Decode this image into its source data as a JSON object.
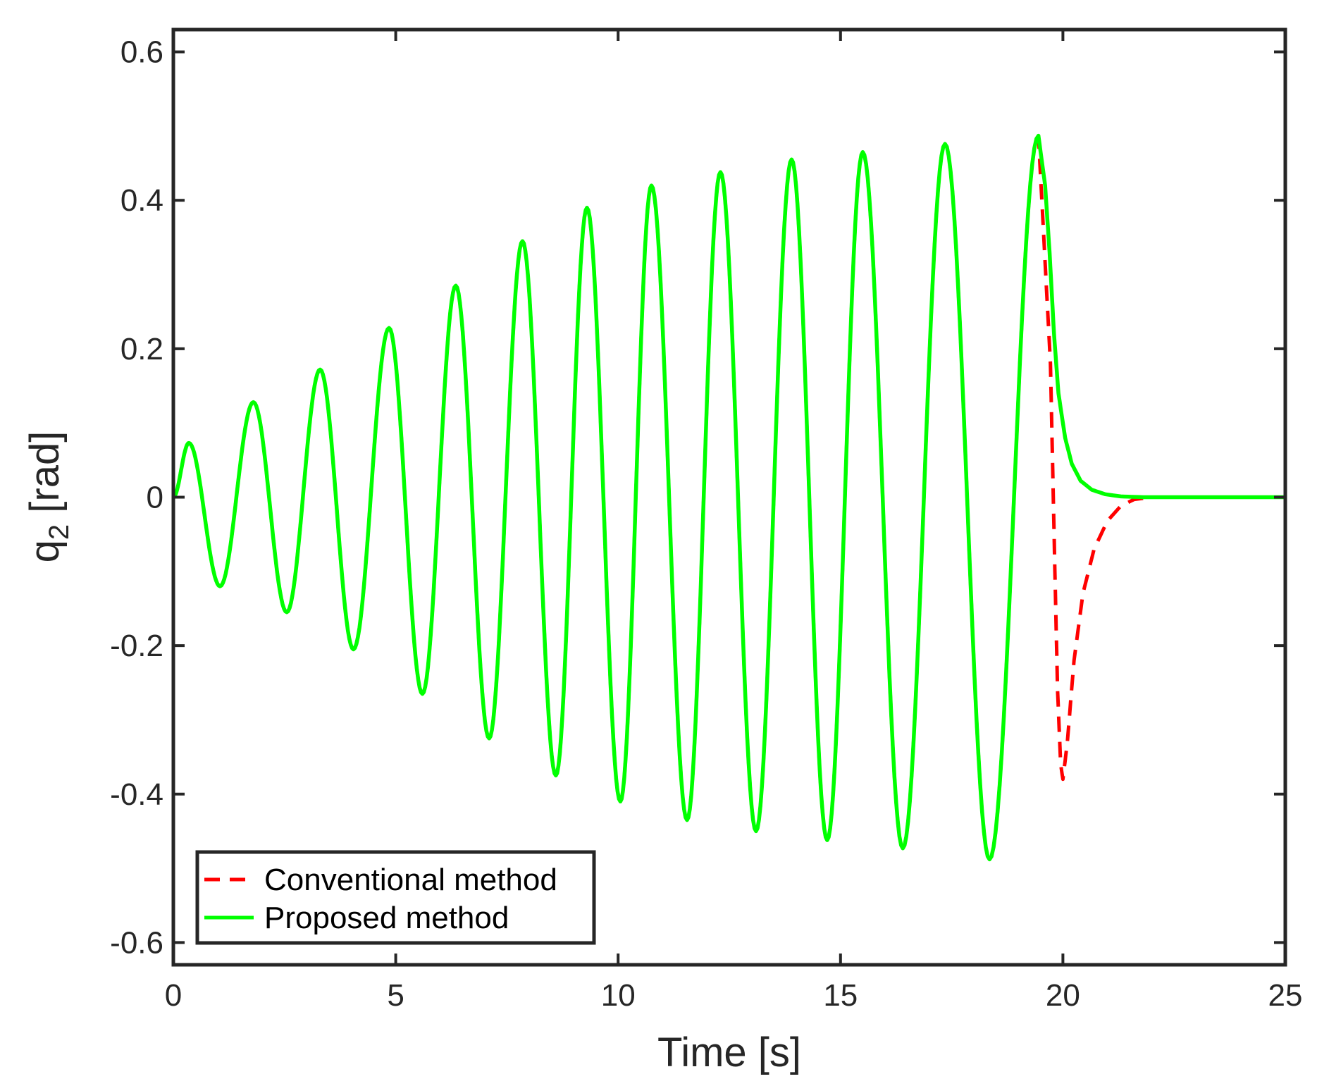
{
  "chart_data": {
    "type": "line",
    "title": "",
    "xlabel": "Time [s]",
    "ylabel_main": "q",
    "ylabel_sub": "2",
    "ylabel_unit": " [rad]",
    "xlim": [
      0,
      25
    ],
    "ylim": [
      -0.63,
      0.63
    ],
    "xticks": [
      0,
      5,
      10,
      15,
      20,
      25
    ],
    "xtick_labels": [
      "0",
      "5",
      "10",
      "15",
      "20",
      "25"
    ],
    "yticks": [
      -0.6,
      -0.4,
      -0.2,
      0,
      0.2,
      0.4,
      0.6
    ],
    "ytick_labels": [
      "-0.6",
      "-0.4",
      "-0.2",
      "0",
      "0.2",
      "0.4",
      "0.6"
    ],
    "grid": false,
    "legend_position": "bottom-left",
    "extrema": {
      "t": [
        0.0,
        0.35,
        1.05,
        1.8,
        2.55,
        3.3,
        4.05,
        4.85,
        5.6,
        6.35,
        7.1,
        7.85,
        8.6,
        9.3,
        10.05,
        10.75,
        11.55,
        12.3,
        13.1,
        13.9,
        14.7,
        15.5,
        16.4,
        17.35,
        18.35,
        19.45
      ],
      "q": [
        0.0,
        0.073,
        -0.12,
        0.128,
        -0.155,
        0.172,
        -0.205,
        0.228,
        -0.265,
        0.285,
        -0.325,
        0.345,
        -0.375,
        0.39,
        -0.41,
        0.42,
        -0.435,
        0.438,
        -0.45,
        0.455,
        -0.462,
        0.465,
        -0.473,
        0.476,
        -0.488,
        0.487
      ]
    },
    "series": [
      {
        "name": "Conventional method",
        "color": "#ff0000",
        "style": "dashed",
        "tail": {
          "t": [
            19.45,
            19.72,
            19.82,
            19.88,
            19.95,
            20.0,
            20.1,
            20.25,
            20.45,
            20.7,
            21.0,
            21.3,
            21.6,
            22.0,
            25.0
          ],
          "q": [
            0.487,
            0.18,
            -0.1,
            -0.26,
            -0.36,
            -0.38,
            -0.33,
            -0.22,
            -0.13,
            -0.07,
            -0.032,
            -0.012,
            -0.003,
            0.0,
            0.0
          ]
        }
      },
      {
        "name": "Proposed method",
        "color": "#00ff00",
        "style": "solid",
        "tail": {
          "t": [
            19.45,
            19.6,
            19.7,
            19.8,
            19.9,
            20.05,
            20.2,
            20.4,
            20.65,
            20.95,
            21.3,
            21.8,
            25.0
          ],
          "q": [
            0.487,
            0.42,
            0.33,
            0.22,
            0.14,
            0.08,
            0.045,
            0.022,
            0.01,
            0.004,
            0.001,
            0.0,
            0.0
          ]
        }
      }
    ]
  }
}
